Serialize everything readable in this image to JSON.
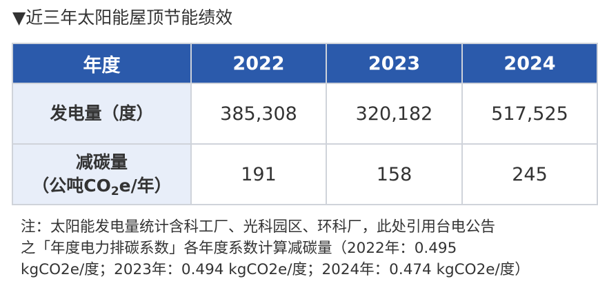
{
  "title": "▼近三年太阳能屋顶节能绩效",
  "table": {
    "header": [
      "年度",
      "2022",
      "2023",
      "2024"
    ],
    "rows": [
      {
        "label": [
          "发电量（度）"
        ],
        "values": [
          "385,308",
          "320,182",
          "517,525"
        ]
      },
      {
        "label": [
          "减碳量",
          "（公吨CO",
          "2",
          "e/年）"
        ],
        "values": [
          "191",
          "158",
          "245"
        ]
      }
    ]
  },
  "note": [
    "注：太阳能发电量统计含科工厂、光科园区、环科厂，此处引用台电公告",
    "之「年度电力排碳系数」各年度系数计算减碳量（2022年：0.495",
    "kgCO2e/度；2023年：0.494 kgCO2e/度；2024年：0.474 kgCO2e/度）"
  ]
}
